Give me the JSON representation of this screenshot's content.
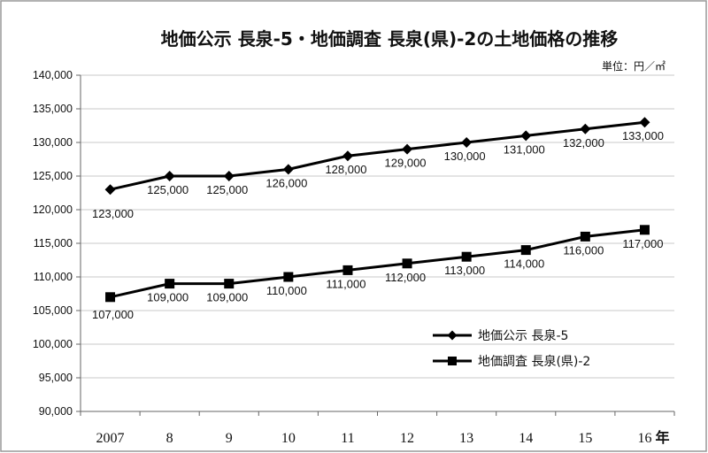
{
  "chart_data": {
    "type": "line",
    "title": "地価公示 長泉-5・地価調査 長泉(県)-2の土地価格の推移",
    "unit_label": "単位：円／㎡",
    "x_unit_suffix": "年",
    "categories": [
      "2007",
      "8",
      "9",
      "10",
      "11",
      "12",
      "13",
      "14",
      "15",
      "16"
    ],
    "ylim": [
      90000,
      140000
    ],
    "y_ticks": [
      "90,000",
      "95,000",
      "100,000",
      "105,000",
      "110,000",
      "115,000",
      "120,000",
      "125,000",
      "130,000",
      "135,000",
      "140,000"
    ],
    "grid": true,
    "legend_position": "bottom-right",
    "series": [
      {
        "name": "地価公示 長泉-5",
        "marker": "diamond",
        "values": [
          123000,
          125000,
          125000,
          126000,
          128000,
          129000,
          130000,
          131000,
          132000,
          133000
        ],
        "labels": [
          "123,000",
          "125,000",
          "125,000",
          "126,000",
          "128,000",
          "129,000",
          "130,000",
          "131,000",
          "132,000",
          "133,000"
        ]
      },
      {
        "name": "地価調査 長泉(県)-2",
        "marker": "square",
        "values": [
          107000,
          109000,
          109000,
          110000,
          111000,
          112000,
          113000,
          114000,
          116000,
          117000
        ],
        "labels": [
          "107,000",
          "109,000",
          "109,000",
          "110,000",
          "111,000",
          "112,000",
          "113,000",
          "114,000",
          "116,000",
          "117,000"
        ]
      }
    ],
    "colors": {
      "line": "#000000",
      "grid": "#c8c8c8",
      "background": "#ffffff"
    }
  }
}
